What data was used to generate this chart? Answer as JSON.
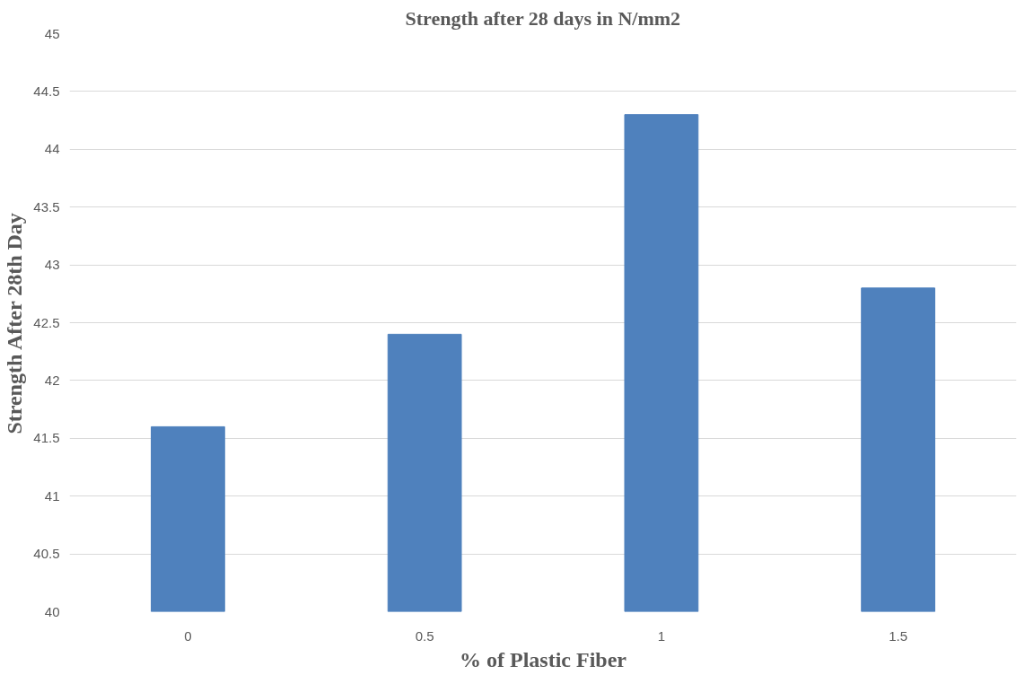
{
  "chart_data": {
    "type": "bar",
    "title": "Strength after 28 days in N/mm2",
    "xlabel": "% of Plastic Fiber",
    "ylabel": "Strength After 28th Day",
    "categories": [
      "0",
      "0.5",
      "1",
      "1.5"
    ],
    "values": [
      41.6,
      42.4,
      44.3,
      42.8
    ],
    "color": "#4f81bd",
    "ylim": [
      40,
      45
    ],
    "yticks": [
      40,
      40.5,
      41,
      41.5,
      42,
      42.5,
      43,
      43.5,
      44,
      44.5,
      45
    ],
    "grid": "y"
  }
}
